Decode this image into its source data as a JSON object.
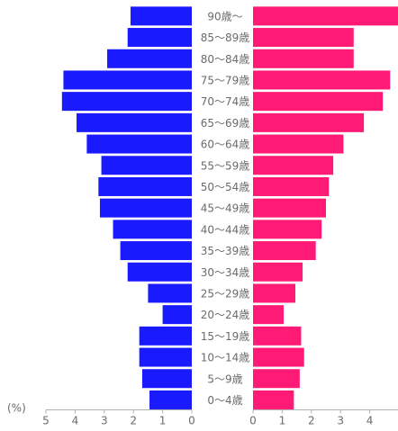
{
  "chart_data": {
    "type": "bar",
    "orientation": "horizontal",
    "layout": "population-pyramid",
    "categories": [
      "0〜4歳",
      "5〜9歳",
      "10〜14歳",
      "15〜19歳",
      "20〜24歳",
      "25〜29歳",
      "30〜34歳",
      "35〜39歳",
      "40〜44歳",
      "45〜49歳",
      "50〜54歳",
      "55〜59歳",
      "60〜64歳",
      "65〜69歳",
      "70〜74歳",
      "75〜79歳",
      "80〜84歳",
      "85〜89歳",
      "90歳〜"
    ],
    "series": [
      {
        "color": "#1a1aff",
        "side": "left",
        "values": [
          1.45,
          1.7,
          1.8,
          1.8,
          1.0,
          1.5,
          2.2,
          2.45,
          2.7,
          3.15,
          3.2,
          3.1,
          3.6,
          3.95,
          4.45,
          4.4,
          2.9,
          2.2,
          2.1
        ]
      },
      {
        "color": "#ff1a75",
        "side": "right",
        "values": [
          1.4,
          1.6,
          1.75,
          1.65,
          1.05,
          1.45,
          1.7,
          2.15,
          2.35,
          2.5,
          2.6,
          2.75,
          3.1,
          3.8,
          4.45,
          4.7,
          3.45,
          3.45,
          5.0
        ]
      }
    ],
    "xlim": [
      0,
      5
    ],
    "left_ticks": [
      "5",
      "4",
      "3",
      "2",
      "1",
      "0"
    ],
    "right_ticks": [
      "0",
      "1",
      "2",
      "3",
      "4"
    ],
    "unit": "(%)",
    "legend": "none",
    "grid": false
  }
}
